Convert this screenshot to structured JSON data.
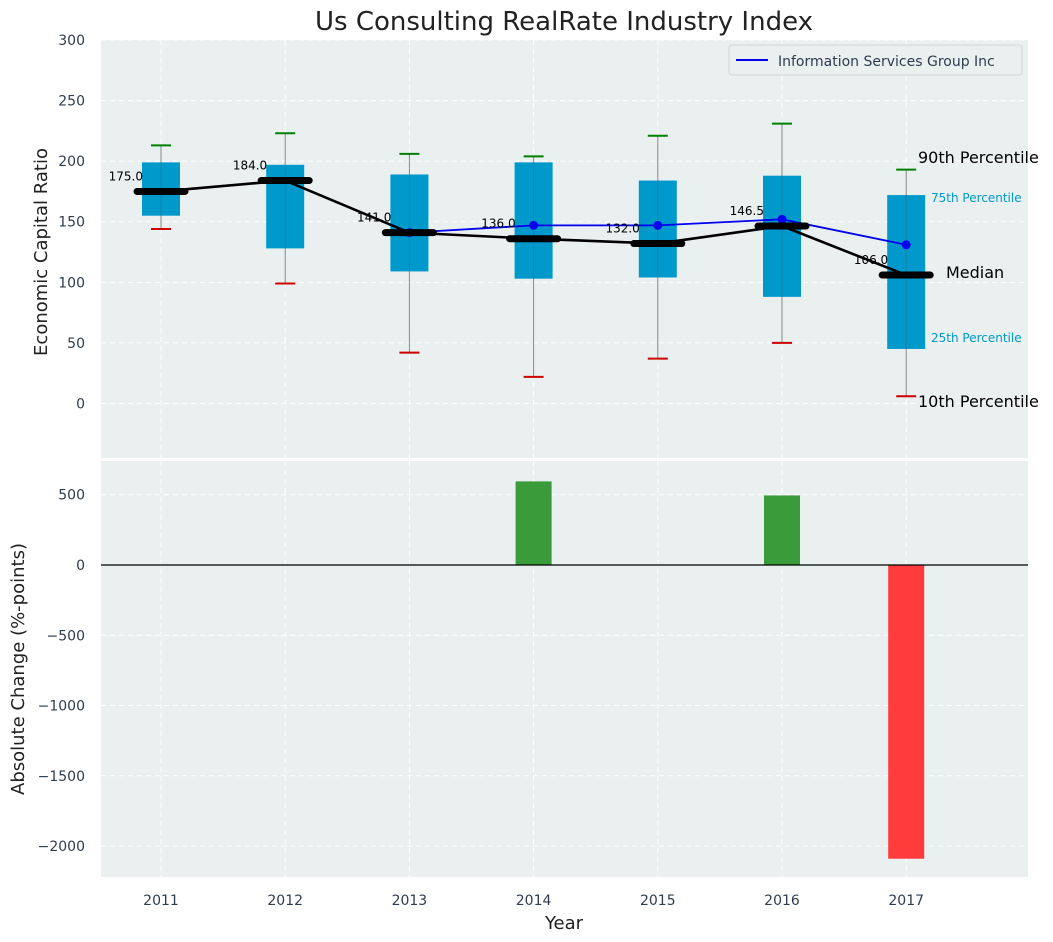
{
  "colors": {
    "panel_bg": "#eaeff0",
    "grid": "#ffffff",
    "box": "#0099cc",
    "median": "#000000",
    "company": "#0000ee",
    "p90_whisker": "#008000",
    "p10_whisker": "#cc0000",
    "positive_bar": "#3a9b3a",
    "negative_bar": "#ff3b3b",
    "axis_text": "#2e3d4f"
  },
  "chart_data": [
    {
      "type": "box",
      "title": "Us Consulting RealRate Industry Index",
      "xlabel": "Year",
      "ylabel": "Economic Capital Ratio",
      "ylim": [
        -45,
        300
      ],
      "yticks": [
        0,
        50,
        100,
        150,
        200,
        250,
        300
      ],
      "categories": [
        "2011",
        "2012",
        "2013",
        "2014",
        "2015",
        "2016",
        "2017"
      ],
      "p10": [
        144,
        99,
        42,
        22,
        37,
        50,
        6
      ],
      "p25": [
        155,
        128,
        109,
        103,
        104,
        88,
        45
      ],
      "median": [
        175.0,
        184.0,
        141.0,
        136.0,
        132.0,
        146.5,
        106.0
      ],
      "median_labels": [
        "175.0",
        "184.0",
        "141.0",
        "136.0",
        "132.0",
        "146.5",
        "106.0"
      ],
      "p75": [
        199,
        197,
        189,
        199,
        184,
        188,
        172
      ],
      "p90": [
        213,
        223,
        206,
        204,
        221,
        231,
        193
      ],
      "series": [
        {
          "name": "Information Services Group Inc",
          "values": [
            null,
            null,
            141,
            147,
            147,
            152,
            131
          ]
        }
      ],
      "legend": {
        "position": "top-right",
        "label": "Information Services Group Inc"
      },
      "annotations": {
        "p90": "90th Percentile",
        "p75": "75th Percentile",
        "median": "Median",
        "p25": "25th Percentile",
        "p10": "10th Percentile"
      },
      "grid": true
    },
    {
      "type": "bar",
      "xlabel": "Year",
      "ylabel": "Absolute Change (%-points)",
      "ylim": [
        -2220,
        740
      ],
      "yticks": [
        500,
        0,
        -500,
        -1000,
        -1500,
        -2000
      ],
      "ytick_labels": [
        "500",
        "0",
        "−500",
        "−1000",
        "−1500",
        "−2000"
      ],
      "categories": [
        "2011",
        "2012",
        "2013",
        "2014",
        "2015",
        "2016",
        "2017"
      ],
      "values": [
        0,
        0,
        0,
        595,
        0,
        495,
        -2090
      ],
      "grid": true
    }
  ]
}
